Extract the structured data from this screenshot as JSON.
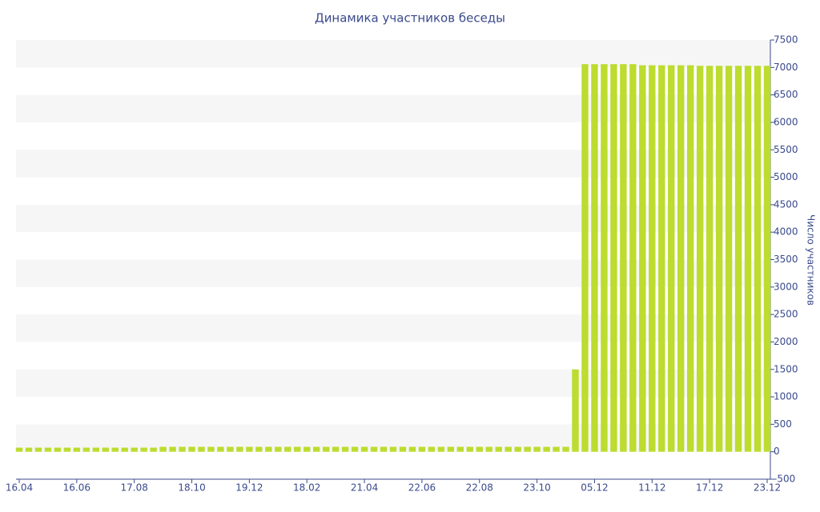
{
  "chart_data": {
    "type": "bar",
    "title": "Динамика участников беседы",
    "y_label": "Число участников",
    "categories": [
      "16.04",
      null,
      null,
      null,
      null,
      null,
      "16.06",
      null,
      null,
      null,
      null,
      null,
      "17.08",
      null,
      null,
      null,
      null,
      null,
      "18.10",
      null,
      null,
      null,
      null,
      null,
      "19.12",
      null,
      null,
      null,
      null,
      null,
      "18.02",
      null,
      null,
      null,
      null,
      null,
      "21.04",
      null,
      null,
      null,
      null,
      null,
      "22.06",
      null,
      null,
      null,
      null,
      null,
      "22.08",
      null,
      null,
      null,
      null,
      null,
      "23.10",
      null,
      null,
      null,
      null,
      null,
      "05.12",
      null,
      null,
      null,
      null,
      null,
      "11.12",
      null,
      null,
      null,
      null,
      null,
      "17.12",
      null,
      null,
      null,
      null,
      null,
      "23.12"
    ],
    "values": [
      75,
      75,
      75,
      75,
      75,
      75,
      75,
      75,
      75,
      75,
      75,
      75,
      75,
      75,
      75,
      90,
      90,
      90,
      90,
      90,
      90,
      90,
      90,
      90,
      90,
      90,
      90,
      90,
      90,
      90,
      90,
      90,
      90,
      90,
      90,
      90,
      90,
      90,
      90,
      90,
      90,
      90,
      90,
      90,
      90,
      90,
      90,
      90,
      90,
      90,
      90,
      90,
      90,
      90,
      90,
      90,
      90,
      90,
      1500,
      7060,
      7060,
      7060,
      7060,
      7060,
      7060,
      7040,
      7040,
      7040,
      7040,
      7040,
      7040,
      7030,
      7030,
      7030,
      7030,
      7030,
      7030,
      7030,
      7030
    ],
    "color": "#bcdc2f",
    "ylim": [
      -500,
      7500
    ],
    "yticks": [
      -500,
      0,
      500,
      1000,
      1500,
      2000,
      2500,
      3000,
      3500,
      4000,
      4500,
      5000,
      5500,
      6000,
      6500,
      7000,
      7500
    ],
    "grid": "bands",
    "y_axis_side": "right"
  }
}
